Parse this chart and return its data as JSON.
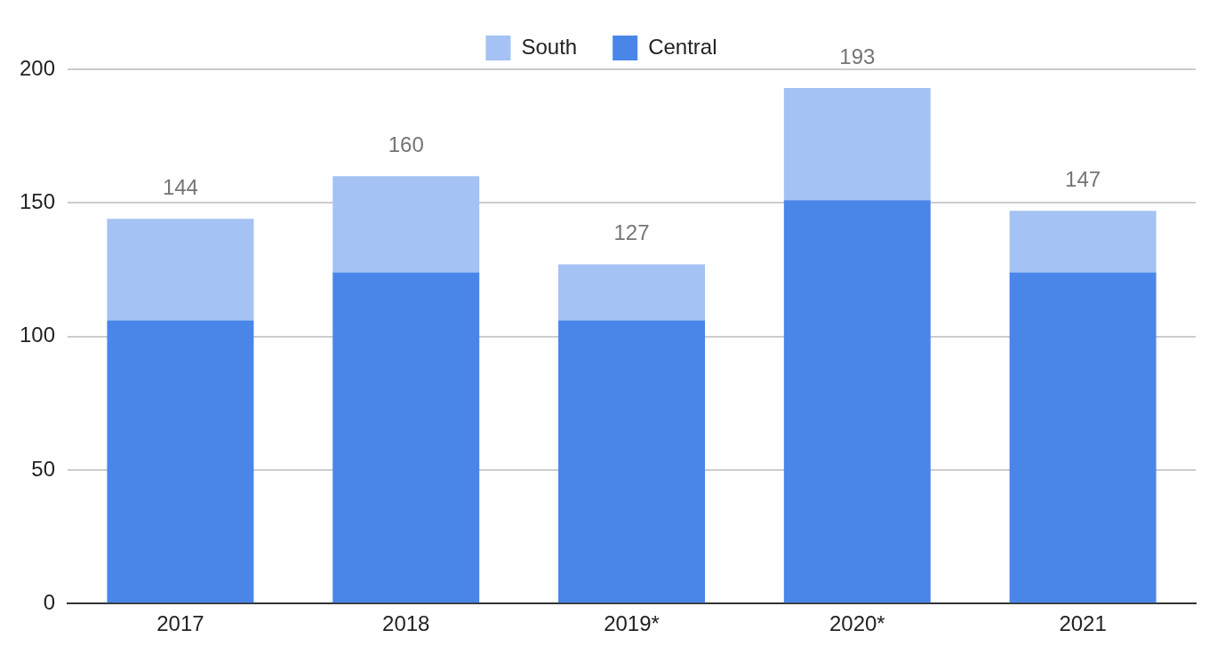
{
  "chart_data": {
    "type": "bar",
    "stacked": true,
    "categories": [
      "2017",
      "2018",
      "2019*",
      "2020*",
      "2021"
    ],
    "series": [
      {
        "name": "Central",
        "color": "#4a86e8",
        "values": [
          106,
          124,
          106,
          151,
          124
        ]
      },
      {
        "name": "South",
        "color": "#a4c2f4",
        "values": [
          38,
          36,
          21,
          42,
          23
        ]
      }
    ],
    "totals": [
      "144",
      "160",
      "127",
      "193",
      "147"
    ],
    "ylim": [
      0,
      200
    ],
    "yticks": [
      0,
      50,
      100,
      150,
      200
    ],
    "grid": "y",
    "legend": "top"
  }
}
